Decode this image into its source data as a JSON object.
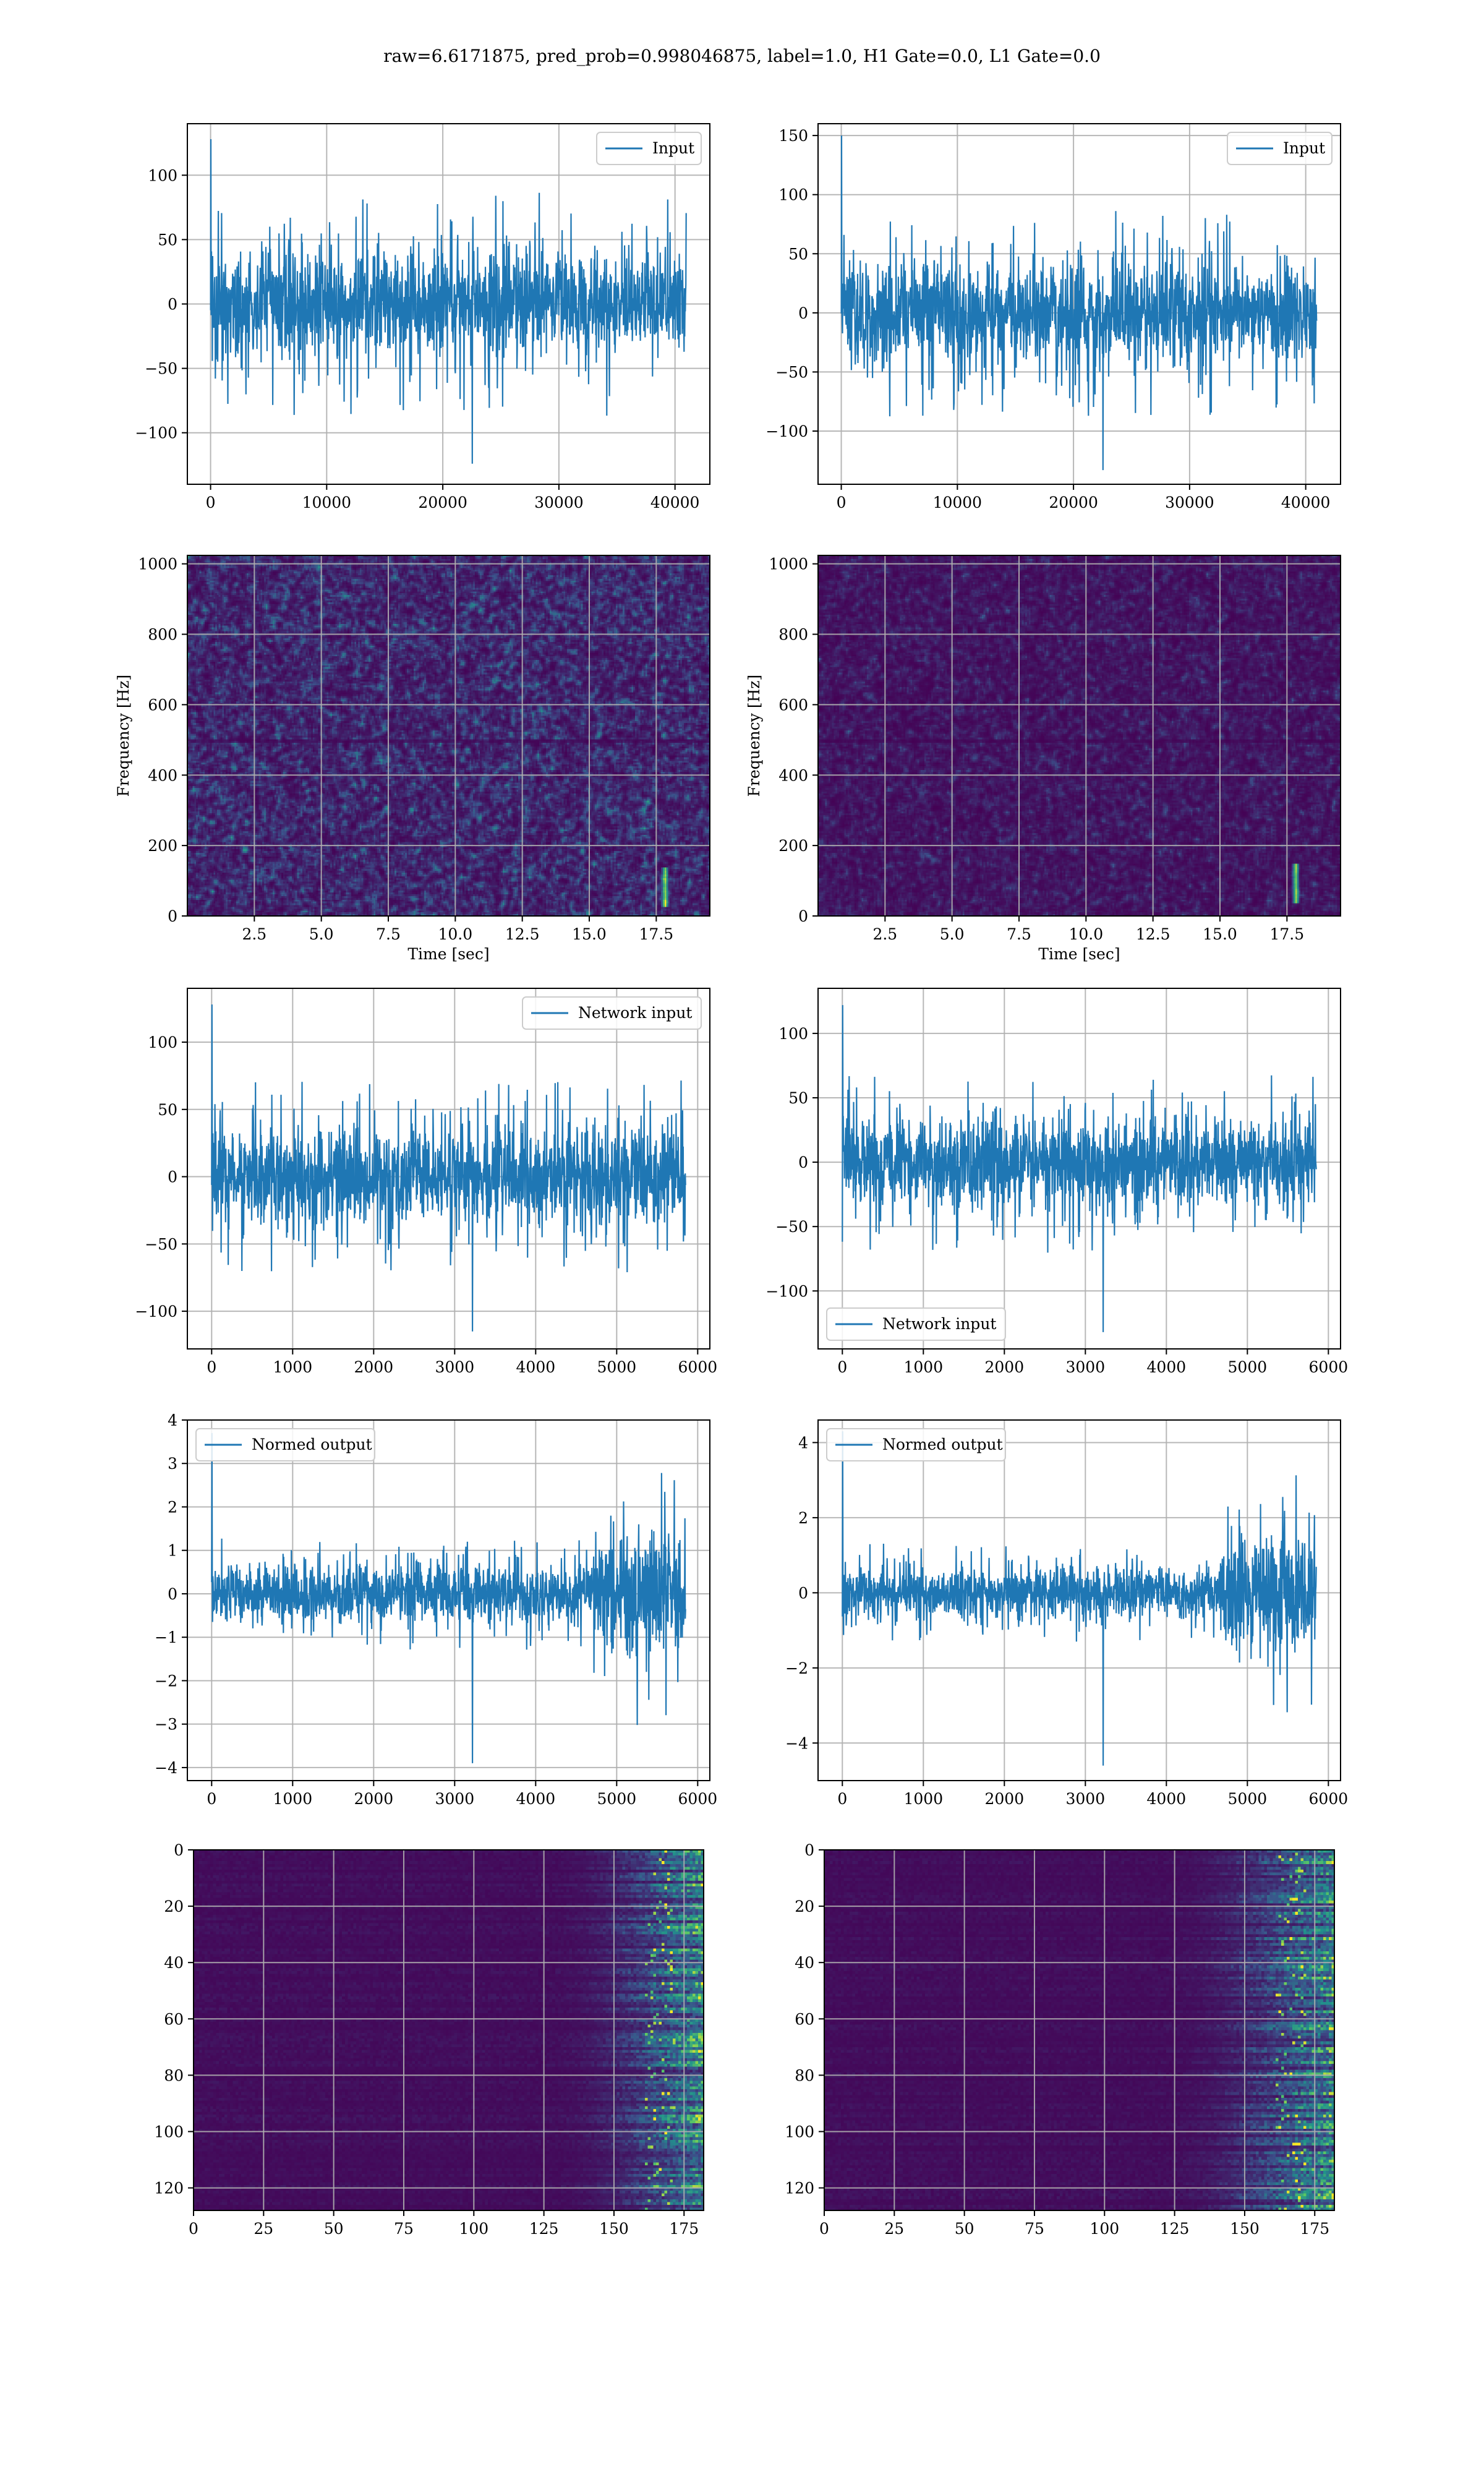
{
  "figure_title": "raw=6.6171875, pred_prob=0.998046875, label=1.0, H1 Gate=0.0, L1 Gate=0.0",
  "colors": {
    "line": "#1f77b4",
    "grid": "#b0b0b0",
    "viridis_low": "#440154",
    "viridis_mid": "#3b528b",
    "viridis_teal": "#21918c",
    "viridis_green": "#5ec962",
    "viridis_high": "#fde725"
  },
  "chart_data": [
    {
      "id": "input-h1",
      "type": "line",
      "legend": "Input",
      "legend_loc": "upper-right",
      "series": [
        {
          "name": "Input",
          "x_range": [
            0,
            40960
          ],
          "amplitude": 40,
          "peak_max": 128,
          "peak_min": -124
        }
      ],
      "xlim": [
        -2000,
        43000
      ],
      "ylim": [
        -140,
        140
      ],
      "xticks": [
        0,
        10000,
        20000,
        30000,
        40000
      ],
      "xticklabels": [
        "0",
        "10000",
        "20000",
        "30000",
        "40000"
      ],
      "yticks": [
        -100,
        -50,
        0,
        50,
        100
      ],
      "yticklabels": [
        "−100",
        "−50",
        "0",
        "50",
        "100"
      ],
      "xlabel": "",
      "ylabel": "",
      "grid": true
    },
    {
      "id": "input-l1",
      "type": "line",
      "legend": "Input",
      "legend_loc": "upper-right",
      "series": [
        {
          "name": "Input",
          "x_range": [
            0,
            40960
          ],
          "amplitude": 40,
          "peak_max": 150,
          "peak_min": -133
        }
      ],
      "xlim": [
        -2000,
        43000
      ],
      "ylim": [
        -145,
        160
      ],
      "xticks": [
        0,
        10000,
        20000,
        30000,
        40000
      ],
      "xticklabels": [
        "0",
        "10000",
        "20000",
        "30000",
        "40000"
      ],
      "yticks": [
        -100,
        -50,
        0,
        50,
        100,
        150
      ],
      "yticklabels": [
        "−100",
        "−50",
        "0",
        "50",
        "100",
        "150"
      ],
      "xlabel": "",
      "ylabel": "",
      "grid": true
    },
    {
      "id": "spec-h1",
      "type": "heatmap",
      "variant": "spectrogram",
      "noise_level": 0.55,
      "xlim": [
        0,
        19.5
      ],
      "ylim": [
        0,
        1024
      ],
      "xticks": [
        2.5,
        5.0,
        7.5,
        10.0,
        12.5,
        15.0,
        17.5
      ],
      "xticklabels": [
        "2.5",
        "5.0",
        "7.5",
        "10.0",
        "12.5",
        "15.0",
        "17.5"
      ],
      "yticks": [
        0,
        200,
        400,
        600,
        800,
        1000
      ],
      "yticklabels": [
        "0",
        "200",
        "400",
        "600",
        "800",
        "1000"
      ],
      "xlabel": "Time [sec]",
      "ylabel": "Frequency [Hz]",
      "grid": true,
      "chirp": {
        "t": 17.8,
        "f_low": 30,
        "f_high": 140
      }
    },
    {
      "id": "spec-l1",
      "type": "heatmap",
      "variant": "spectrogram",
      "noise_level": 0.3,
      "xlim": [
        0,
        19.5
      ],
      "ylim": [
        0,
        1024
      ],
      "xticks": [
        2.5,
        5.0,
        7.5,
        10.0,
        12.5,
        15.0,
        17.5
      ],
      "xticklabels": [
        "2.5",
        "5.0",
        "7.5",
        "10.0",
        "12.5",
        "15.0",
        "17.5"
      ],
      "yticks": [
        0,
        200,
        400,
        600,
        800,
        1000
      ],
      "yticklabels": [
        "0",
        "200",
        "400",
        "600",
        "800",
        "1000"
      ],
      "xlabel": "Time [sec]",
      "ylabel": "Frequency [Hz]",
      "grid": true,
      "chirp": {
        "t": 17.8,
        "f_low": 40,
        "f_high": 150
      }
    },
    {
      "id": "net-h1",
      "type": "line",
      "legend": "Network input",
      "legend_loc": "upper-right",
      "series": [
        {
          "name": "Network input",
          "x_range": [
            0,
            5850
          ],
          "amplitude": 33,
          "peak_max": 128,
          "peak_min": -115
        }
      ],
      "xlim": [
        -300,
        6150
      ],
      "ylim": [
        -128,
        140
      ],
      "xticks": [
        0,
        1000,
        2000,
        3000,
        4000,
        5000,
        6000
      ],
      "xticklabels": [
        "0",
        "1000",
        "2000",
        "3000",
        "4000",
        "5000",
        "6000"
      ],
      "yticks": [
        -100,
        -50,
        0,
        50,
        100
      ],
      "yticklabels": [
        "−100",
        "−50",
        "0",
        "50",
        "100"
      ],
      "xlabel": "",
      "ylabel": "",
      "grid": true
    },
    {
      "id": "net-l1",
      "type": "line",
      "legend": "Network input",
      "legend_loc": "lower-left",
      "series": [
        {
          "name": "Network input",
          "x_range": [
            0,
            5850
          ],
          "amplitude": 32,
          "peak_max": 122,
          "peak_min": -132
        }
      ],
      "xlim": [
        -300,
        6150
      ],
      "ylim": [
        -145,
        135
      ],
      "xticks": [
        0,
        1000,
        2000,
        3000,
        4000,
        5000,
        6000
      ],
      "xticklabels": [
        "0",
        "1000",
        "2000",
        "3000",
        "4000",
        "5000",
        "6000"
      ],
      "yticks": [
        -100,
        -50,
        0,
        50,
        100
      ],
      "yticklabels": [
        "−100",
        "−50",
        "0",
        "50",
        "100"
      ],
      "xlabel": "",
      "ylabel": "",
      "grid": true
    },
    {
      "id": "norm-h1",
      "type": "line",
      "legend": "Normed output",
      "legend_loc": "upper-left",
      "series": [
        {
          "name": "Normed output",
          "x_range": [
            0,
            5850
          ],
          "amplitude": 0.6,
          "burst_from": 4700,
          "burst_gain": 2.4,
          "peak_max": 3.7,
          "peak_min": -3.9
        }
      ],
      "xlim": [
        -300,
        6150
      ],
      "ylim": [
        -4.3,
        4.0
      ],
      "xticks": [
        0,
        1000,
        2000,
        3000,
        4000,
        5000,
        6000
      ],
      "xticklabels": [
        "0",
        "1000",
        "2000",
        "3000",
        "4000",
        "5000",
        "6000"
      ],
      "yticks": [
        -4,
        -3,
        -2,
        -1,
        0,
        1,
        2,
        3,
        4
      ],
      "yticklabels": [
        "−4",
        "−3",
        "−2",
        "−1",
        "0",
        "1",
        "2",
        "3",
        "4"
      ],
      "xlabel": "",
      "ylabel": "",
      "grid": true
    },
    {
      "id": "norm-l1",
      "type": "line",
      "legend": "Normed output",
      "legend_loc": "upper-left",
      "series": [
        {
          "name": "Normed output",
          "x_range": [
            0,
            5850
          ],
          "amplitude": 0.6,
          "burst_from": 4700,
          "burst_gain": 2.5,
          "peak_max": 4.3,
          "peak_min": -4.6
        }
      ],
      "xlim": [
        -300,
        6150
      ],
      "ylim": [
        -5.0,
        4.6
      ],
      "xticks": [
        0,
        1000,
        2000,
        3000,
        4000,
        5000,
        6000
      ],
      "xticklabels": [
        "0",
        "1000",
        "2000",
        "3000",
        "4000",
        "5000",
        "6000"
      ],
      "yticks": [
        -4,
        -2,
        0,
        2,
        4
      ],
      "yticklabels": [
        "−4",
        "−2",
        "0",
        "2",
        "4"
      ],
      "xlabel": "",
      "ylabel": "",
      "grid": true
    },
    {
      "id": "feat-h1",
      "type": "heatmap",
      "variant": "features",
      "rows": 128,
      "cols": 182,
      "onset": 125,
      "xlim": [
        0,
        182
      ],
      "ylim": [
        128,
        0
      ],
      "xticks": [
        0,
        25,
        50,
        75,
        100,
        125,
        150,
        175
      ],
      "xticklabels": [
        "0",
        "25",
        "50",
        "75",
        "100",
        "125",
        "150",
        "175"
      ],
      "yticks": [
        0,
        20,
        40,
        60,
        80,
        100,
        120
      ],
      "yticklabels": [
        "0",
        "20",
        "40",
        "60",
        "80",
        "100",
        "120"
      ],
      "xlabel": "",
      "ylabel": "",
      "grid": true
    },
    {
      "id": "feat-l1",
      "type": "heatmap",
      "variant": "features",
      "rows": 128,
      "cols": 182,
      "onset": 118,
      "xlim": [
        0,
        182
      ],
      "ylim": [
        128,
        0
      ],
      "xticks": [
        0,
        25,
        50,
        75,
        100,
        125,
        150,
        175
      ],
      "xticklabels": [
        "0",
        "25",
        "50",
        "75",
        "100",
        "125",
        "150",
        "175"
      ],
      "yticks": [
        0,
        20,
        40,
        60,
        80,
        100,
        120
      ],
      "yticklabels": [
        "0",
        "20",
        "40",
        "60",
        "80",
        "100",
        "120"
      ],
      "xlabel": "",
      "ylabel": "",
      "grid": true
    }
  ]
}
